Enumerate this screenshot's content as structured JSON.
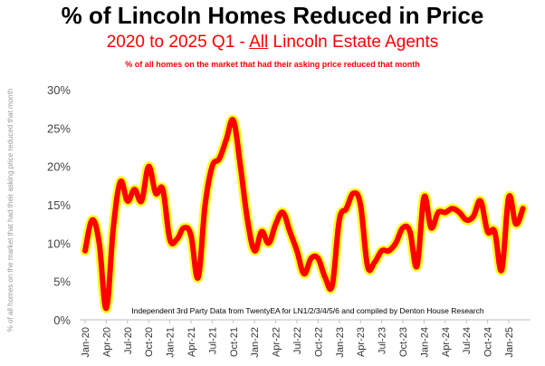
{
  "header": {
    "title": "% of Lincoln Homes Reduced in Price",
    "subtitle_before": "2020 to 2025 Q1 - ",
    "subtitle_underlined": "All",
    "subtitle_after": " Lincoln Estate Agents",
    "note": "% of all homes on the market that had their asking price reduced that month"
  },
  "colors": {
    "line": "#ff0000",
    "glow": "#ffff00",
    "title": "#000000",
    "subtitle": "#ff0000"
  },
  "chart_data": {
    "type": "line",
    "title": "% of Lincoln Homes Reduced in Price",
    "ylabel": "% of all homes on the market that had their asking price reduced that month",
    "xlabel": "",
    "ylim": [
      0,
      30
    ],
    "yticks": [
      "0%",
      "5%",
      "10%",
      "15%",
      "20%",
      "25%",
      "30%"
    ],
    "ytick_values": [
      0,
      5,
      10,
      15,
      20,
      25,
      30
    ],
    "grid": false,
    "legend": "none",
    "xticks": [
      "Jan-20",
      "Apr-20",
      "Jul-20",
      "Oct-20",
      "Jan-21",
      "Apr-21",
      "Jul-21",
      "Oct-21",
      "Jan-22",
      "Apr-22",
      "Jul-22",
      "Oct-22",
      "Jan-23",
      "Apr-23",
      "Jul-23",
      "Oct-23",
      "Jan-24",
      "Apr-24",
      "Jul-24",
      "Oct-24",
      "Jan-25"
    ],
    "annotation": "Independent 3rd Party Data from TwentyEA for LN1/2/3/4/5/6 and compiled by Denton House Research",
    "series": [
      {
        "values": [
          9.0,
          13.0,
          10.0,
          1.5,
          12.0,
          18.0,
          15.5,
          17.0,
          15.5,
          20.0,
          16.5,
          17.0,
          10.5,
          10.5,
          12.0,
          11.0,
          5.5,
          15.0,
          20.0,
          21.0,
          23.5,
          26.0,
          20.0,
          13.0,
          9.0,
          11.5,
          10.0,
          12.5,
          14.0,
          11.5,
          9.0,
          6.0,
          8.0,
          8.0,
          5.5,
          4.5,
          13.0,
          14.5,
          16.5,
          15.0,
          7.0,
          7.5,
          9.0,
          9.0,
          10.0,
          12.0,
          11.5,
          7.0,
          16.0,
          12.0,
          14.0,
          14.0,
          14.5,
          14.0,
          13.0,
          13.5,
          15.5,
          11.5,
          11.5,
          6.5,
          16.0,
          12.5,
          14.5
        ]
      }
    ]
  }
}
